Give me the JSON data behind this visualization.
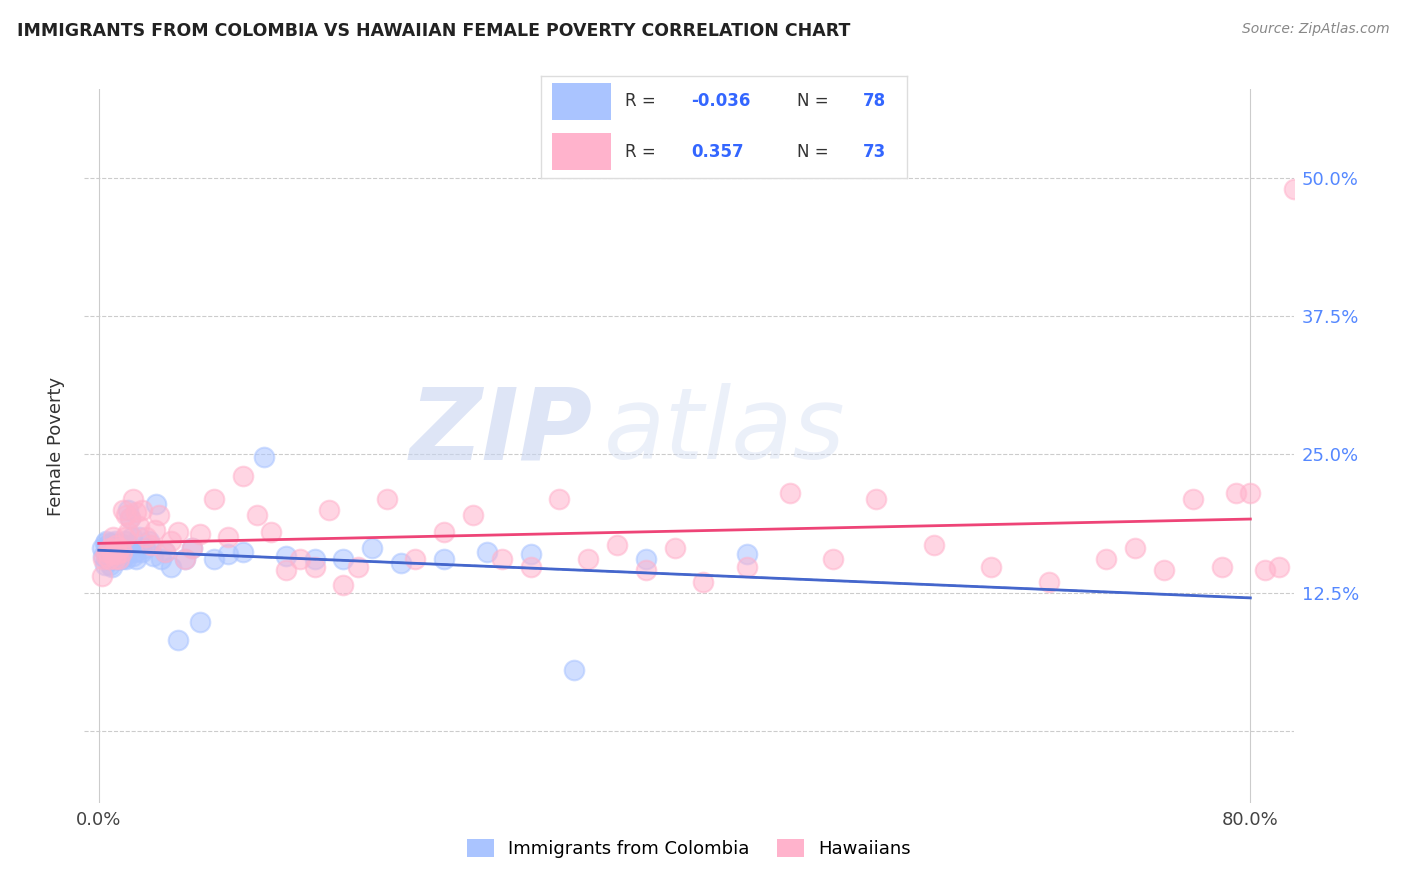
{
  "title": "IMMIGRANTS FROM COLOMBIA VS HAWAIIAN FEMALE POVERTY CORRELATION CHART",
  "source": "Source: ZipAtlas.com",
  "ylabel": "Female Poverty",
  "x_ticks": [
    0.0,
    0.1,
    0.2,
    0.3,
    0.4,
    0.5,
    0.6,
    0.7,
    0.8
  ],
  "x_tick_labels": [
    "0.0%",
    "",
    "",
    "",
    "",
    "",
    "",
    "",
    "80.0%"
  ],
  "y_ticks": [
    0.0,
    0.125,
    0.25,
    0.375,
    0.5
  ],
  "y_tick_labels": [
    "",
    "12.5%",
    "25.0%",
    "37.5%",
    "50.0%"
  ],
  "xlim": [
    -0.01,
    0.83
  ],
  "ylim": [
    -0.065,
    0.58
  ],
  "R_colombia": -0.036,
  "N_colombia": 78,
  "R_hawaiian": 0.357,
  "N_hawaiian": 73,
  "color_colombia": "#aac4ff",
  "color_hawaiian": "#ffb3cc",
  "line_colombia": "#4466cc",
  "line_hawaiian": "#ee4477",
  "watermark_zip": "ZIP",
  "watermark_atlas": "atlas",
  "legend_label_colombia": "Immigrants from Colombia",
  "legend_label_hawaiian": "Hawaiians",
  "colombia_x": [
    0.002,
    0.003,
    0.004,
    0.004,
    0.005,
    0.005,
    0.005,
    0.006,
    0.006,
    0.007,
    0.007,
    0.008,
    0.008,
    0.008,
    0.009,
    0.009,
    0.009,
    0.01,
    0.01,
    0.01,
    0.011,
    0.011,
    0.011,
    0.012,
    0.012,
    0.013,
    0.013,
    0.013,
    0.014,
    0.014,
    0.014,
    0.015,
    0.015,
    0.015,
    0.016,
    0.016,
    0.016,
    0.017,
    0.017,
    0.018,
    0.018,
    0.019,
    0.019,
    0.02,
    0.021,
    0.022,
    0.023,
    0.024,
    0.025,
    0.026,
    0.028,
    0.03,
    0.032,
    0.035,
    0.038,
    0.04,
    0.043,
    0.046,
    0.05,
    0.055,
    0.06,
    0.065,
    0.07,
    0.08,
    0.09,
    0.1,
    0.115,
    0.13,
    0.15,
    0.17,
    0.19,
    0.21,
    0.24,
    0.27,
    0.3,
    0.33,
    0.38,
    0.45
  ],
  "colombia_y": [
    0.165,
    0.158,
    0.17,
    0.15,
    0.163,
    0.155,
    0.172,
    0.158,
    0.168,
    0.162,
    0.155,
    0.17,
    0.15,
    0.16,
    0.165,
    0.155,
    0.148,
    0.162,
    0.17,
    0.158,
    0.165,
    0.155,
    0.172,
    0.158,
    0.162,
    0.155,
    0.168,
    0.16,
    0.165,
    0.155,
    0.16,
    0.17,
    0.155,
    0.162,
    0.168,
    0.16,
    0.155,
    0.162,
    0.16,
    0.172,
    0.158,
    0.163,
    0.155,
    0.2,
    0.168,
    0.192,
    0.175,
    0.158,
    0.162,
    0.155,
    0.175,
    0.162,
    0.165,
    0.172,
    0.158,
    0.205,
    0.155,
    0.162,
    0.148,
    0.082,
    0.155,
    0.165,
    0.098,
    0.155,
    0.16,
    0.162,
    0.248,
    0.158,
    0.155,
    0.155,
    0.165,
    0.152,
    0.155,
    0.162,
    0.16,
    0.055,
    0.155,
    0.16
  ],
  "hawaiian_x": [
    0.002,
    0.003,
    0.005,
    0.006,
    0.007,
    0.008,
    0.009,
    0.01,
    0.011,
    0.012,
    0.013,
    0.014,
    0.015,
    0.016,
    0.017,
    0.018,
    0.019,
    0.02,
    0.022,
    0.024,
    0.026,
    0.028,
    0.03,
    0.033,
    0.036,
    0.039,
    0.042,
    0.046,
    0.05,
    0.055,
    0.06,
    0.065,
    0.07,
    0.08,
    0.09,
    0.1,
    0.11,
    0.12,
    0.13,
    0.14,
    0.15,
    0.16,
    0.17,
    0.18,
    0.2,
    0.22,
    0.24,
    0.26,
    0.28,
    0.3,
    0.32,
    0.34,
    0.36,
    0.38,
    0.4,
    0.42,
    0.45,
    0.48,
    0.51,
    0.54,
    0.58,
    0.62,
    0.66,
    0.7,
    0.72,
    0.74,
    0.76,
    0.78,
    0.79,
    0.8,
    0.81,
    0.82,
    0.83
  ],
  "hawaiian_y": [
    0.14,
    0.155,
    0.158,
    0.162,
    0.155,
    0.165,
    0.16,
    0.175,
    0.155,
    0.168,
    0.16,
    0.155,
    0.165,
    0.162,
    0.2,
    0.175,
    0.195,
    0.18,
    0.192,
    0.21,
    0.198,
    0.185,
    0.2,
    0.175,
    0.168,
    0.182,
    0.195,
    0.162,
    0.172,
    0.18,
    0.155,
    0.165,
    0.178,
    0.21,
    0.175,
    0.23,
    0.195,
    0.18,
    0.145,
    0.155,
    0.148,
    0.2,
    0.132,
    0.148,
    0.21,
    0.155,
    0.18,
    0.195,
    0.155,
    0.148,
    0.21,
    0.155,
    0.168,
    0.145,
    0.165,
    0.135,
    0.148,
    0.215,
    0.155,
    0.21,
    0.168,
    0.148,
    0.135,
    0.155,
    0.165,
    0.145,
    0.21,
    0.148,
    0.215,
    0.215,
    0.145,
    0.148,
    0.49
  ]
}
